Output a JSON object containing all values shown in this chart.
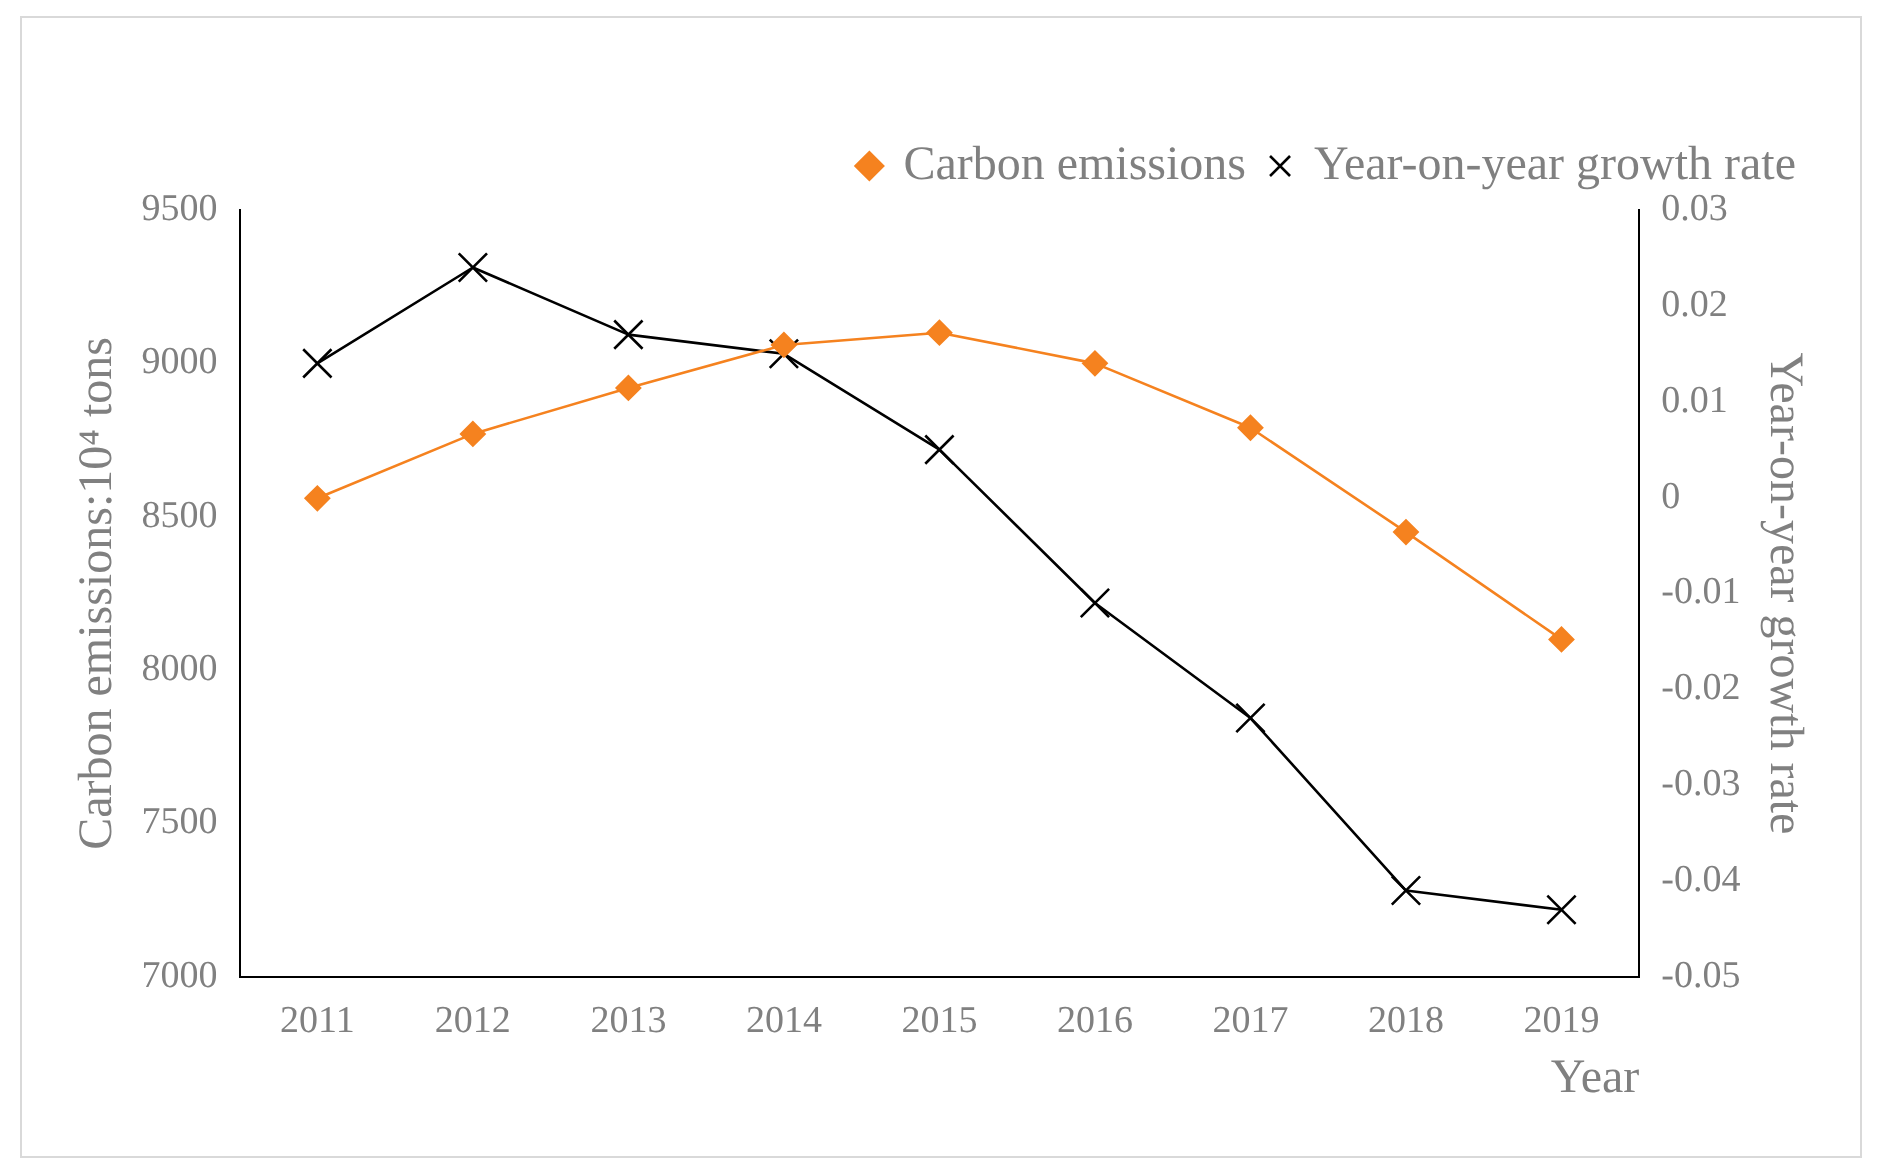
{
  "chart_data": {
    "type": "line",
    "xlabel": "Year",
    "ylabel": "Carbon emissions:10⁴ tons",
    "y2label": "Year-on-year growth rate",
    "categories": [
      "2011",
      "2012",
      "2013",
      "2014",
      "2015",
      "2016",
      "2017",
      "2018",
      "2019"
    ],
    "series": [
      {
        "name": "Carbon emissions",
        "color": "#f5821f",
        "marker": "diamond",
        "values": [
          8560,
          8770,
          8920,
          9060,
          9100,
          9000,
          8790,
          8450,
          8100
        ]
      },
      {
        "name": "Year-on-year growth rate",
        "color": "#000000",
        "marker": "cross",
        "axis": "y2",
        "values": [
          0.014,
          0.024,
          0.017,
          0.015,
          0.005,
          -0.011,
          -0.023,
          -0.041,
          -0.043
        ]
      }
    ],
    "ylim": [
      7000,
      9500
    ],
    "yticks": [
      7000,
      7500,
      8000,
      8500,
      9000,
      9500
    ],
    "y2lim": [
      -0.05,
      0.03
    ],
    "y2ticks": [
      -0.05,
      -0.04,
      -0.03,
      -0.02,
      -0.01,
      0,
      0.01,
      0.02,
      0.03
    ],
    "grid": false,
    "legend": "top right",
    "line_style": "solid"
  }
}
